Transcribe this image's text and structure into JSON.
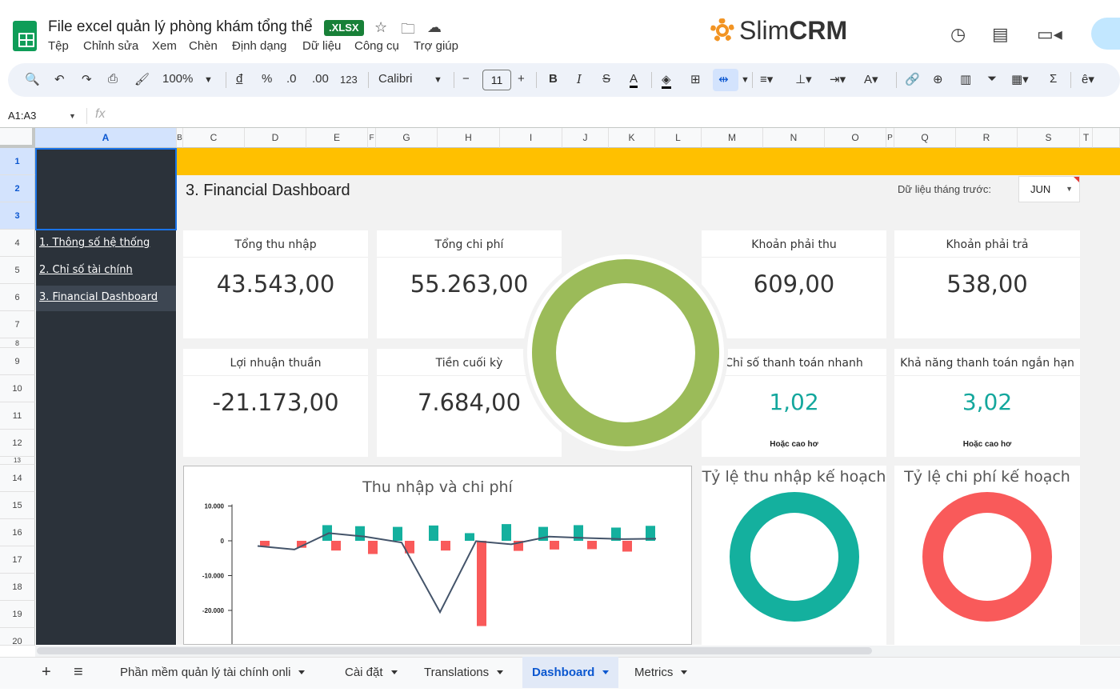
{
  "app": {
    "doc_title": "File excel quản lý phòng khám tổng thể",
    "badge": ".XLSX",
    "menus": [
      "Tệp",
      "Chỉnh sửa",
      "Xem",
      "Chèn",
      "Định dạng",
      "Dữ liệu",
      "Công cụ",
      "Trợ giúp"
    ],
    "brand_light": "Slim",
    "brand_bold": "CRM",
    "icons": [
      "star-icon",
      "move-folder-icon",
      "cloud-status-icon",
      "history-icon",
      "comment-icon",
      "meet-icon"
    ]
  },
  "toolbar": {
    "zoom": "100%",
    "currency": "đ",
    "percent": "%",
    "dec_less": ".0",
    "dec_more": ".00",
    "number_format": "123",
    "font": "Calibri",
    "font_size": "11",
    "bold": "B",
    "italic": "I",
    "strike": "S",
    "text_color": "A"
  },
  "formula": {
    "cell_ref": "A1:A3",
    "fx": "fx"
  },
  "columns": [
    "A",
    "B",
    "C",
    "D",
    "E",
    "F",
    "G",
    "H",
    "I",
    "J",
    "K",
    "L",
    "M",
    "N",
    "O",
    "P",
    "Q",
    "R",
    "S",
    "T"
  ],
  "rows": [
    "1",
    "2",
    "3",
    "4",
    "5",
    "6",
    "7",
    "8",
    "9",
    "10",
    "11",
    "12",
    "13",
    "14",
    "15",
    "16",
    "17",
    "18",
    "19",
    "20"
  ],
  "nav": [
    "1. Thông số hệ thống",
    "2. Chỉ số tài chính",
    "3. Financial Dashboard"
  ],
  "dashboard": {
    "title": "3. Financial Dashboard",
    "prev_label": "Dữ liệu tháng trước:",
    "month": "JUN",
    "cards": [
      {
        "label": "Tổng thu nhập",
        "value": "43.543,00"
      },
      {
        "label": "Tổng chi phí",
        "value": "55.263,00"
      },
      {
        "label": "Khoản phải thu",
        "value": "609,00"
      },
      {
        "label": "Khoản phải trả",
        "value": "538,00"
      },
      {
        "label": "Lợi nhuận thuần",
        "value": "-21.173,00"
      },
      {
        "label": "Tiền cuối kỳ",
        "value": "7.684,00"
      },
      {
        "label": "Chỉ số thanh toán nhanh",
        "value": "1,02",
        "note": "Hoặc cao hơ"
      },
      {
        "label": "Khả năng thanh toán ngắn hạn",
        "value": "3,02",
        "note": "Hoặc cao hơ"
      }
    ],
    "ring_titles": [
      "Tỷ lệ thu nhập kế hoạch",
      "Tỷ lệ chi phí kế hoạch"
    ],
    "colors": {
      "green_ring": "#9bbb59",
      "teal_ring": "#14b09e",
      "red_ring": "#f95a5a",
      "banner": "#ffc000",
      "sidebar": "#2b323a"
    }
  },
  "chart_data": {
    "type": "bar",
    "title": "Thu nhập và chi phí",
    "ylim": [
      -30000,
      10000
    ],
    "yticks": [
      "10.000",
      "0",
      "-10.000",
      "-20.000",
      "-30.000"
    ],
    "ytick_values": [
      10000,
      0,
      -10000,
      -20000,
      -30000
    ],
    "series": [
      {
        "values": [
          -1500,
          -2000,
          4500,
          4200,
          4000,
          4400,
          2200,
          4800,
          4000,
          4500,
          3800,
          4300
        ]
      },
      {
        "values": [
          -2800,
          -3800,
          -3600,
          -2800,
          -24500,
          -2900,
          -2500,
          -2400,
          -3100
        ]
      },
      {
        "values": [
          -1500,
          -2500,
          2200,
          1200,
          -500,
          -20500,
          -100,
          -1000,
          1200,
          800,
          500,
          800,
          600
        ]
      }
    ]
  },
  "sheets": {
    "tabs": [
      "Phần mềm quản lý tài chính onli",
      "Cài đặt",
      "Translations",
      "Dashboard",
      "Metrics"
    ],
    "add_icon": "+",
    "list_icon": "≡"
  }
}
